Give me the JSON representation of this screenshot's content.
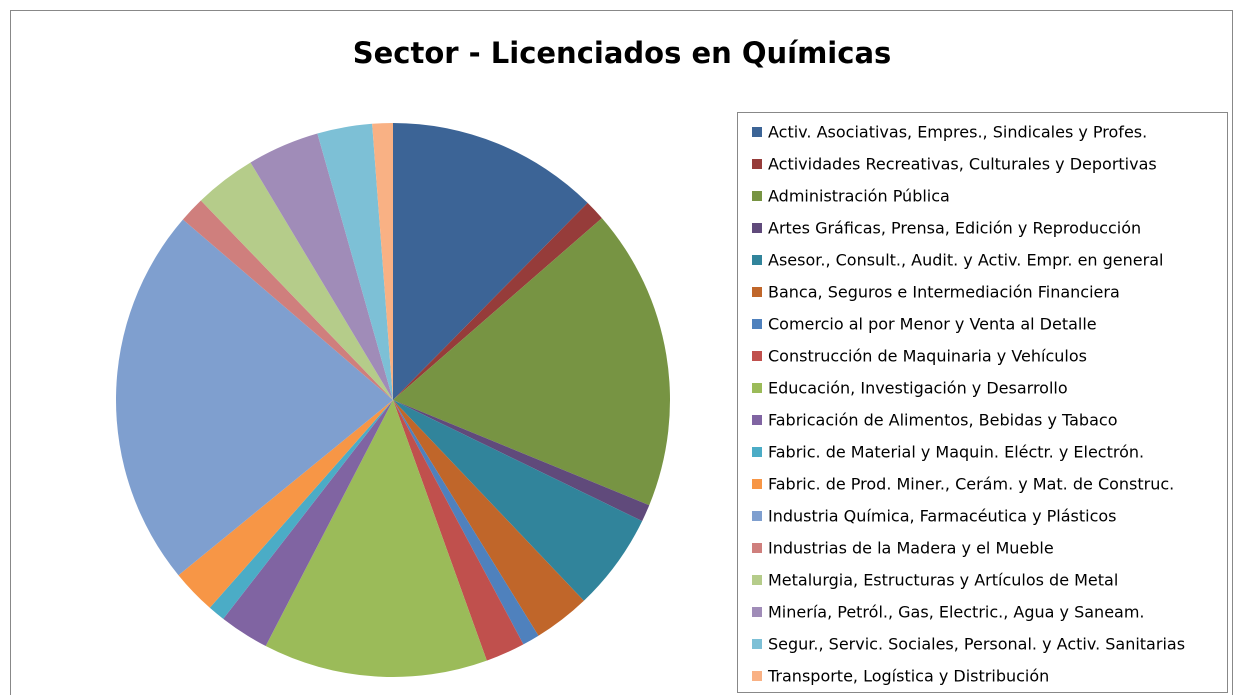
{
  "chart_data": {
    "type": "pie",
    "title": "Sector - Licenciados en Químicas",
    "categories": [
      "Activ. Asociativas, Empres., Sindicales y Profes.",
      "Actividades Recreativas, Culturales y Deportivas",
      "Administración Pública",
      "Artes Gráficas, Prensa, Edición y Reproducción",
      "Asesor., Consult., Audit. y Activ. Empr. en general",
      "Banca, Seguros e Intermediación Financiera",
      "Comercio al por Menor y Venta al Detalle",
      "Construcción de Maquinaria y Vehículos",
      "Educación, Investigación y Desarrollo",
      "Fabricación de Alimentos, Bebidas y Tabaco",
      "Fabric. de Material y Maquin. Eléctr. y Electrón.",
      "Fabric. de Prod. Miner., Cerám. y Mat. de Construc.",
      "Industria Química, Farmacéutica y Plásticos",
      "Industrias de la Madera y el Mueble",
      "Metalurgia, Estructuras y Artículos de Metal",
      "Minería, Petról., Gas, Electric., Agua y Saneam.",
      "Segur., Servic. Sociales, Personal. y Activ. Sanitarias",
      "Transporte, Logística y Distribución"
    ],
    "values": [
      12.4,
      1.2,
      17.6,
      1,
      5.7,
      3.3,
      1,
      2.3,
      13.1,
      2.9,
      1,
      2.6,
      22.2,
      1.5,
      3.6,
      4.2,
      3.2,
      1.2
    ],
    "colors": [
      "#3c6496",
      "#963c3a",
      "#779443",
      "#604a7b",
      "#31849b",
      "#c0662a",
      "#4f81bd",
      "#c0504d",
      "#9bbb59",
      "#8064a2",
      "#4bacc6",
      "#f79646",
      "#7f9fcf",
      "#cf7f7d",
      "#b5cc8a",
      "#a08cb8",
      "#7dc0d6",
      "#f9b184"
    ],
    "legend": "right"
  }
}
